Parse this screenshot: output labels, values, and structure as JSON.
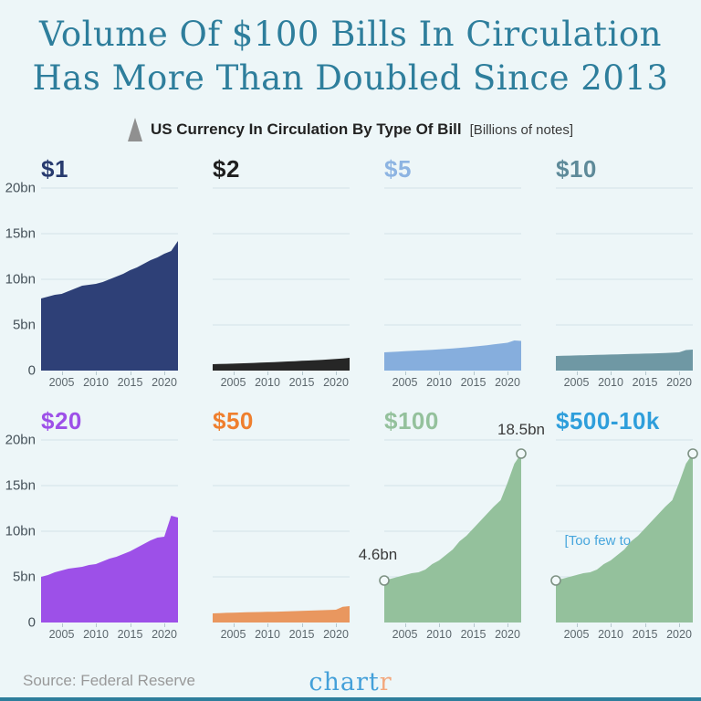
{
  "title": {
    "line1": "Volume Of $100 Bills In Circulation",
    "line2": "Has More Than Doubled Since 2013"
  },
  "subtitle": {
    "icon": "triangle-up-icon",
    "text": "US Currency In Circulation By Type Of Bill",
    "unit": "[Billions of notes]"
  },
  "footer": {
    "source": "Source: Federal Reserve",
    "logo_part1": "chart",
    "logo_part2": "r"
  },
  "colors": {
    "background": "#edf6f8",
    "title_teal": "#2e7e9c",
    "gridline": "rgba(180,205,212,0.45)",
    "axis_label": "#46525a",
    "tick_label": "#5c676d",
    "marker_stroke": "#7d9183",
    "marker_fill": "#f2f9fa",
    "arrow": "#b3d9f0",
    "bottom_bar": "#2e7e9c"
  },
  "chart_data": {
    "type": "area",
    "layout": "small multiples, 2 rows x 4 cols, shared axes",
    "x": [
      2002,
      2003,
      2004,
      2005,
      2006,
      2007,
      2008,
      2009,
      2010,
      2011,
      2012,
      2013,
      2014,
      2015,
      2016,
      2017,
      2018,
      2019,
      2020,
      2021,
      2022
    ],
    "x_tick_labels": [
      "2005",
      "2010",
      "2015",
      "2020"
    ],
    "x_tick_years": [
      2005,
      2010,
      2015,
      2020
    ],
    "y_ticks": [
      "20bn",
      "15bn",
      "10bn",
      "5bn",
      "0"
    ],
    "ylim": [
      0,
      20
    ],
    "grid": true,
    "charts": [
      {
        "label": "$1",
        "color": "#2e4077",
        "label_color": "#273a6e",
        "values": [
          7.9,
          8.1,
          8.3,
          8.4,
          8.7,
          9.0,
          9.3,
          9.4,
          9.5,
          9.7,
          10.0,
          10.3,
          10.6,
          11.0,
          11.3,
          11.7,
          12.1,
          12.4,
          12.8,
          13.1,
          14.2
        ]
      },
      {
        "label": "$2",
        "color": "#262626",
        "label_color": "#1f1f1f",
        "values": [
          0.7,
          0.72,
          0.74,
          0.76,
          0.79,
          0.81,
          0.84,
          0.87,
          0.9,
          0.93,
          0.96,
          1.0,
          1.03,
          1.07,
          1.1,
          1.14,
          1.18,
          1.22,
          1.27,
          1.33,
          1.4
        ]
      },
      {
        "label": "$5",
        "color": "#86aedd",
        "label_color": "#8db4e2",
        "values": [
          2.0,
          2.04,
          2.08,
          2.12,
          2.16,
          2.2,
          2.24,
          2.28,
          2.33,
          2.38,
          2.43,
          2.49,
          2.55,
          2.62,
          2.7,
          2.78,
          2.87,
          2.96,
          3.05,
          3.3,
          3.25
        ]
      },
      {
        "label": "$10",
        "color": "#6f98a4",
        "label_color": "#5e8a99",
        "values": [
          1.6,
          1.62,
          1.64,
          1.66,
          1.68,
          1.7,
          1.72,
          1.74,
          1.76,
          1.78,
          1.8,
          1.82,
          1.84,
          1.86,
          1.88,
          1.9,
          1.93,
          1.96,
          2.0,
          2.25,
          2.3
        ]
      },
      {
        "label": "$20",
        "color": "#9d50e8",
        "label_color": "#9d50e8",
        "values": [
          5.0,
          5.2,
          5.5,
          5.7,
          5.9,
          6.0,
          6.1,
          6.3,
          6.4,
          6.7,
          7.0,
          7.2,
          7.5,
          7.8,
          8.2,
          8.6,
          9.0,
          9.3,
          9.4,
          11.7,
          11.5
        ]
      },
      {
        "label": "$50",
        "color": "#e9975f",
        "label_color": "#ef7f2e",
        "values": [
          1.0,
          1.03,
          1.06,
          1.08,
          1.1,
          1.12,
          1.14,
          1.15,
          1.17,
          1.18,
          1.2,
          1.22,
          1.25,
          1.27,
          1.3,
          1.32,
          1.35,
          1.37,
          1.4,
          1.72,
          1.8
        ]
      },
      {
        "label": "$100",
        "color": "#94c19c",
        "label_color": "#94c19c",
        "values": [
          4.6,
          4.8,
          5.0,
          5.2,
          5.4,
          5.5,
          5.8,
          6.4,
          6.8,
          7.4,
          8.0,
          8.9,
          9.5,
          10.3,
          11.1,
          11.9,
          12.7,
          13.4,
          15.3,
          17.4,
          18.5
        ],
        "annotations": [
          {
            "year": 2002,
            "value": 4.6,
            "text": "4.6bn"
          },
          {
            "year": 2022,
            "value": 18.5,
            "text": "18.5bn"
          }
        ]
      },
      {
        "label": "$500-10k",
        "color": "#b3d9f0",
        "label_color": "#2e9edb",
        "values": [],
        "no_data_note": "[Too few to register]"
      }
    ]
  }
}
